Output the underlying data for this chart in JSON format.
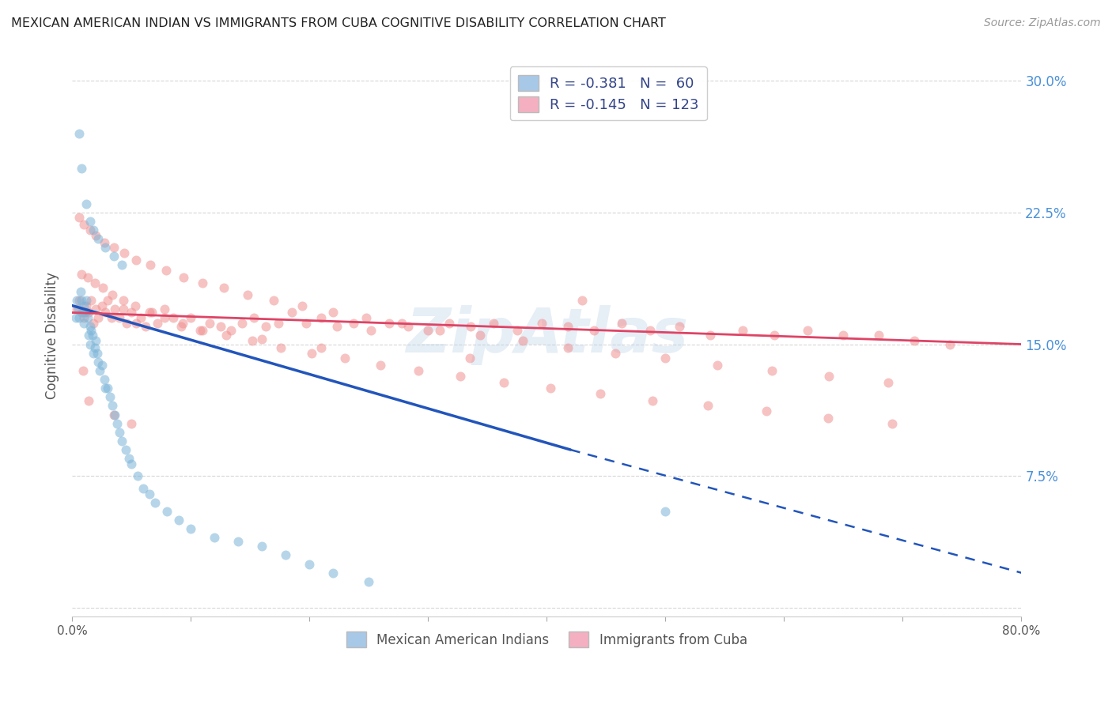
{
  "title": "MEXICAN AMERICAN INDIAN VS IMMIGRANTS FROM CUBA COGNITIVE DISABILITY CORRELATION CHART",
  "source": "Source: ZipAtlas.com",
  "ylabel": "Cognitive Disability",
  "y_ticks": [
    0.0,
    0.075,
    0.15,
    0.225,
    0.3
  ],
  "y_tick_labels": [
    "",
    "7.5%",
    "15.0%",
    "22.5%",
    "30.0%"
  ],
  "xlim": [
    0.0,
    0.8
  ],
  "ylim": [
    -0.005,
    0.315
  ],
  "watermark": "ZipAtlas",
  "blue_scatter_x": [
    0.003,
    0.004,
    0.005,
    0.006,
    0.007,
    0.008,
    0.009,
    0.01,
    0.01,
    0.011,
    0.012,
    0.013,
    0.014,
    0.015,
    0.015,
    0.016,
    0.017,
    0.018,
    0.019,
    0.02,
    0.021,
    0.022,
    0.023,
    0.025,
    0.027,
    0.028,
    0.03,
    0.032,
    0.034,
    0.036,
    0.038,
    0.04,
    0.042,
    0.045,
    0.048,
    0.05,
    0.055,
    0.06,
    0.065,
    0.07,
    0.08,
    0.09,
    0.1,
    0.12,
    0.14,
    0.16,
    0.18,
    0.2,
    0.22,
    0.25,
    0.006,
    0.008,
    0.012,
    0.015,
    0.018,
    0.022,
    0.028,
    0.035,
    0.042,
    0.5
  ],
  "blue_scatter_y": [
    0.165,
    0.175,
    0.17,
    0.165,
    0.18,
    0.175,
    0.168,
    0.172,
    0.162,
    0.168,
    0.175,
    0.165,
    0.155,
    0.16,
    0.15,
    0.158,
    0.155,
    0.145,
    0.148,
    0.152,
    0.145,
    0.14,
    0.135,
    0.138,
    0.13,
    0.125,
    0.125,
    0.12,
    0.115,
    0.11,
    0.105,
    0.1,
    0.095,
    0.09,
    0.085,
    0.082,
    0.075,
    0.068,
    0.065,
    0.06,
    0.055,
    0.05,
    0.045,
    0.04,
    0.038,
    0.035,
    0.03,
    0.025,
    0.02,
    0.015,
    0.27,
    0.25,
    0.23,
    0.22,
    0.215,
    0.21,
    0.205,
    0.2,
    0.195,
    0.055
  ],
  "pink_scatter_x": [
    0.004,
    0.006,
    0.008,
    0.01,
    0.012,
    0.014,
    0.016,
    0.018,
    0.02,
    0.022,
    0.025,
    0.028,
    0.03,
    0.033,
    0.036,
    0.04,
    0.043,
    0.046,
    0.05,
    0.054,
    0.058,
    0.062,
    0.067,
    0.072,
    0.078,
    0.085,
    0.092,
    0.1,
    0.108,
    0.116,
    0.125,
    0.134,
    0.143,
    0.153,
    0.163,
    0.174,
    0.185,
    0.197,
    0.21,
    0.223,
    0.237,
    0.252,
    0.267,
    0.283,
    0.3,
    0.318,
    0.336,
    0.355,
    0.375,
    0.396,
    0.418,
    0.44,
    0.463,
    0.487,
    0.512,
    0.538,
    0.565,
    0.592,
    0.62,
    0.65,
    0.68,
    0.71,
    0.74,
    0.006,
    0.01,
    0.015,
    0.02,
    0.027,
    0.035,
    0.044,
    0.054,
    0.066,
    0.079,
    0.094,
    0.11,
    0.128,
    0.148,
    0.17,
    0.194,
    0.22,
    0.248,
    0.278,
    0.31,
    0.344,
    0.38,
    0.418,
    0.458,
    0.5,
    0.544,
    0.59,
    0.638,
    0.688,
    0.008,
    0.013,
    0.019,
    0.026,
    0.034,
    0.043,
    0.053,
    0.065,
    0.078,
    0.093,
    0.11,
    0.13,
    0.152,
    0.176,
    0.202,
    0.23,
    0.26,
    0.292,
    0.327,
    0.364,
    0.403,
    0.445,
    0.489,
    0.536,
    0.585,
    0.637,
    0.691,
    0.009,
    0.014,
    0.035,
    0.05,
    0.43,
    0.335,
    0.21,
    0.16
  ],
  "pink_scatter_y": [
    0.17,
    0.175,
    0.168,
    0.165,
    0.172,
    0.168,
    0.175,
    0.162,
    0.17,
    0.165,
    0.172,
    0.168,
    0.175,
    0.165,
    0.17,
    0.165,
    0.17,
    0.162,
    0.168,
    0.162,
    0.165,
    0.16,
    0.168,
    0.162,
    0.17,
    0.165,
    0.16,
    0.165,
    0.158,
    0.162,
    0.16,
    0.158,
    0.162,
    0.165,
    0.16,
    0.162,
    0.168,
    0.162,
    0.165,
    0.16,
    0.162,
    0.158,
    0.162,
    0.16,
    0.158,
    0.162,
    0.16,
    0.162,
    0.158,
    0.162,
    0.16,
    0.158,
    0.162,
    0.158,
    0.16,
    0.155,
    0.158,
    0.155,
    0.158,
    0.155,
    0.155,
    0.152,
    0.15,
    0.222,
    0.218,
    0.215,
    0.212,
    0.208,
    0.205,
    0.202,
    0.198,
    0.195,
    0.192,
    0.188,
    0.185,
    0.182,
    0.178,
    0.175,
    0.172,
    0.168,
    0.165,
    0.162,
    0.158,
    0.155,
    0.152,
    0.148,
    0.145,
    0.142,
    0.138,
    0.135,
    0.132,
    0.128,
    0.19,
    0.188,
    0.185,
    0.182,
    0.178,
    0.175,
    0.172,
    0.168,
    0.165,
    0.162,
    0.158,
    0.155,
    0.152,
    0.148,
    0.145,
    0.142,
    0.138,
    0.135,
    0.132,
    0.128,
    0.125,
    0.122,
    0.118,
    0.115,
    0.112,
    0.108,
    0.105,
    0.135,
    0.118,
    0.11,
    0.105,
    0.175,
    0.142,
    0.148,
    0.153
  ],
  "blue_line_x_start": 0.0,
  "blue_line_x_solid_end": 0.42,
  "blue_line_x_end": 0.8,
  "blue_line_y_start": 0.172,
  "blue_line_y_solid_end": 0.09,
  "blue_line_y_end": 0.02,
  "pink_line_x_start": 0.0,
  "pink_line_x_end": 0.8,
  "pink_line_y_start": 0.168,
  "pink_line_y_end": 0.15,
  "dot_color_blue": "#7ab4d8",
  "dot_color_pink": "#f09090",
  "line_color_blue": "#2255bb",
  "line_color_pink": "#dd4466",
  "dot_size": 75,
  "dot_alpha": 0.55,
  "background_color": "#ffffff",
  "grid_color": "#cccccc",
  "title_color": "#222222",
  "axis_label_color": "#555555",
  "right_tick_color": "#4a90d9",
  "watermark_color": "#b8cfe8",
  "watermark_alpha": 0.35
}
